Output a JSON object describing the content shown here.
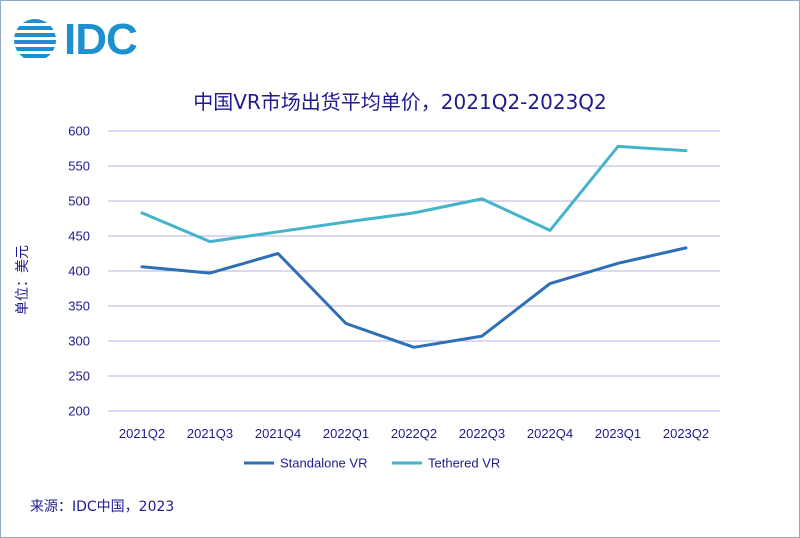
{
  "brand": {
    "name": "IDC"
  },
  "footer": {
    "source": "来源：IDC中国，2023"
  },
  "colors": {
    "standalone": "#2e6fb5",
    "tethered": "#45b3c9",
    "grid": "#b7b3e6",
    "text": "#1f1a8f"
  },
  "chart_data": {
    "type": "line",
    "title": "中国VR市场出货平均单价，2021Q2-2023Q2",
    "xlabel": "",
    "ylabel": "单位：美元",
    "ylim": [
      200,
      600
    ],
    "yticks": [
      200,
      250,
      300,
      350,
      400,
      450,
      500,
      550,
      600
    ],
    "categories": [
      "2021Q2",
      "2021Q3",
      "2021Q4",
      "2022Q1",
      "2022Q2",
      "2022Q3",
      "2022Q4",
      "2023Q1",
      "2023Q2"
    ],
    "series": [
      {
        "name": "Standalone VR",
        "values": [
          406,
          397,
          425,
          325,
          291,
          307,
          382,
          411,
          433
        ]
      },
      {
        "name": "Tethered VR",
        "values": [
          483,
          442,
          456,
          470,
          483,
          503,
          458,
          578,
          572
        ]
      }
    ],
    "grid": true,
    "legend": "bottom"
  }
}
